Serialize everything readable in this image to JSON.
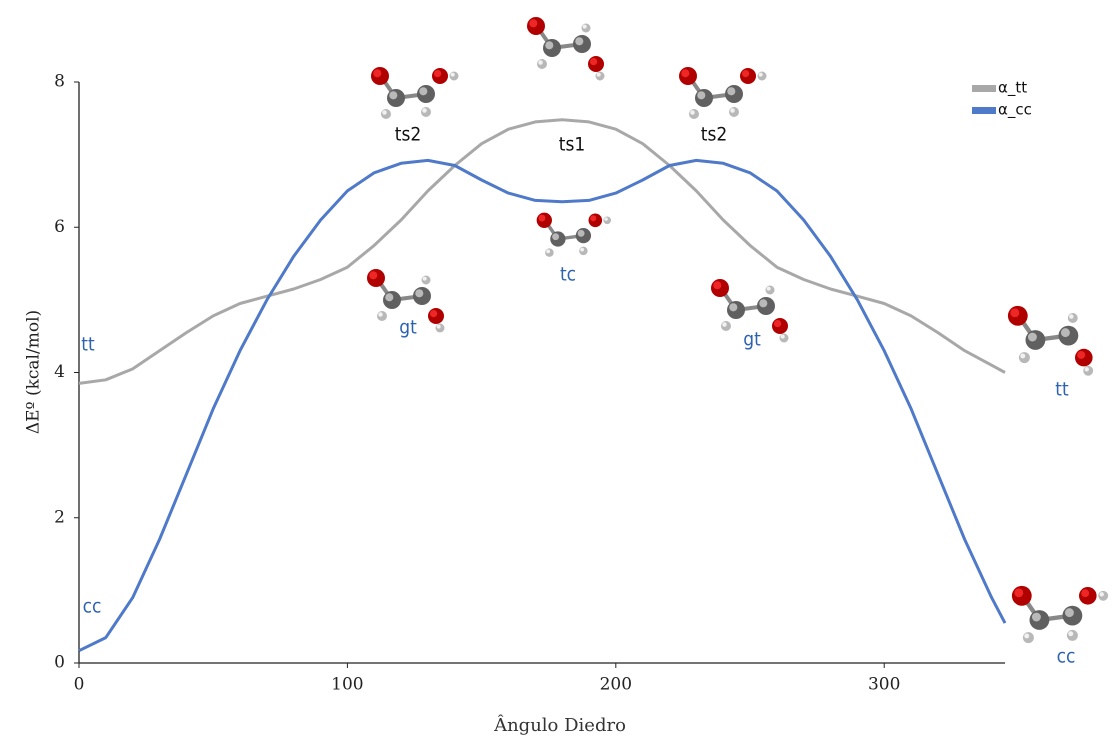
{
  "chart_data": {
    "type": "line",
    "x_label": "Ângulo Diedro",
    "y_label": "ΔEº (kcal/mol)",
    "x": [
      0,
      10,
      20,
      30,
      40,
      50,
      60,
      70,
      80,
      90,
      100,
      110,
      120,
      130,
      140,
      150,
      160,
      170,
      180,
      190,
      200,
      210,
      220,
      230,
      240,
      250,
      260,
      270,
      280,
      290,
      300,
      310,
      320,
      330,
      340,
      345
    ],
    "series": [
      {
        "name": "α_tt",
        "color": "#a8a8a8",
        "values": [
          3.85,
          3.9,
          4.05,
          4.3,
          4.55,
          4.78,
          4.95,
          5.05,
          5.15,
          5.28,
          5.45,
          5.75,
          6.1,
          6.5,
          6.85,
          7.15,
          7.35,
          7.45,
          7.48,
          7.45,
          7.35,
          7.15,
          6.85,
          6.5,
          6.1,
          5.75,
          5.45,
          5.28,
          5.15,
          5.05,
          4.95,
          4.78,
          4.55,
          4.3,
          4.1,
          4.0
        ]
      },
      {
        "name": "α_cc",
        "color": "#4f79c9",
        "values": [
          0.17,
          0.35,
          0.9,
          1.7,
          2.6,
          3.5,
          4.3,
          5.0,
          5.6,
          6.1,
          6.5,
          6.75,
          6.88,
          6.92,
          6.85,
          6.65,
          6.47,
          6.37,
          6.35,
          6.37,
          6.47,
          6.65,
          6.85,
          6.92,
          6.88,
          6.75,
          6.5,
          6.1,
          5.6,
          5.0,
          4.3,
          3.5,
          2.6,
          1.7,
          0.9,
          0.55
        ]
      }
    ],
    "xlim": [
      0,
      345
    ],
    "ylim": [
      0,
      8
    ],
    "xticks": [
      0,
      100,
      200,
      300
    ],
    "yticks": [
      0,
      2,
      4,
      6,
      8
    ],
    "grid": false,
    "legend": "upper right",
    "annotations": [
      "tt",
      "cc",
      "ts2",
      "ts1",
      "ts2",
      "tc",
      "gt",
      "gt",
      "tt",
      "cc"
    ]
  }
}
